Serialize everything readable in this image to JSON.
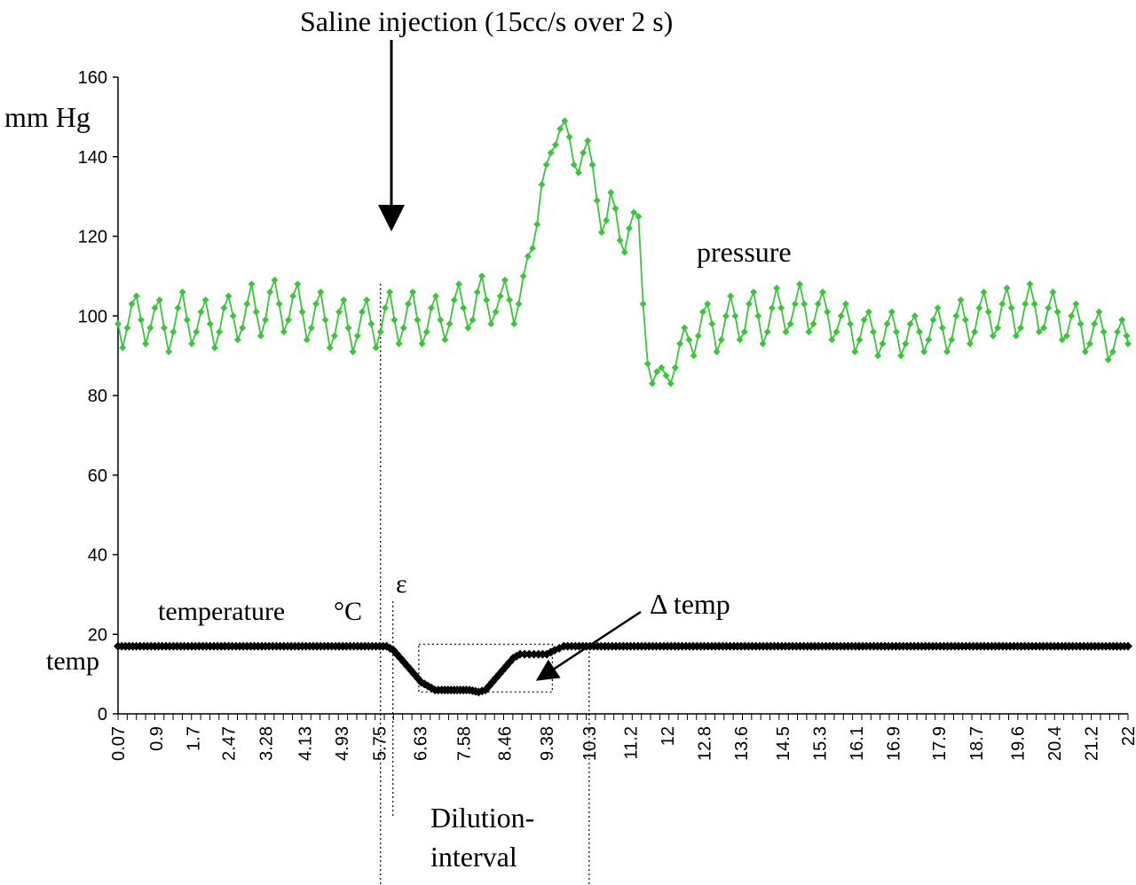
{
  "chart_data": {
    "type": "line",
    "y_axis": {
      "label": "mm Hg",
      "ylim": [
        0,
        160
      ],
      "ticks": [
        0,
        20,
        40,
        60,
        80,
        100,
        120,
        140,
        160
      ]
    },
    "x_axis": {
      "xlim": [
        0.07,
        22
      ],
      "tick_labels": [
        "0.07",
        "0.9",
        "1.7",
        "2.47",
        "3.28",
        "4.13",
        "4.93",
        "5.75",
        "6.63",
        "7.58",
        "8.46",
        "9.38",
        "10.3",
        "11.2",
        "12",
        "12.8",
        "13.6",
        "14.5",
        "15.3",
        "16.1",
        "16.9",
        "17.9",
        "18.7",
        "19.6",
        "20.4",
        "21.2",
        "22"
      ],
      "tick_positions": [
        0.07,
        0.9,
        1.7,
        2.47,
        3.28,
        4.13,
        4.93,
        5.75,
        6.63,
        7.58,
        8.46,
        9.38,
        10.3,
        11.2,
        12,
        12.8,
        13.6,
        14.5,
        15.3,
        16.1,
        16.9,
        17.9,
        18.7,
        19.6,
        20.4,
        21.2,
        22
      ]
    },
    "series": [
      {
        "name": "pressure",
        "color": "#3cc43c",
        "marker": "diamond",
        "points": [
          [
            0.07,
            98
          ],
          [
            0.17,
            92
          ],
          [
            0.27,
            97
          ],
          [
            0.37,
            103
          ],
          [
            0.47,
            105
          ],
          [
            0.57,
            99
          ],
          [
            0.67,
            93
          ],
          [
            0.77,
            97
          ],
          [
            0.87,
            102
          ],
          [
            0.97,
            104
          ],
          [
            1.07,
            97
          ],
          [
            1.17,
            91
          ],
          [
            1.27,
            96
          ],
          [
            1.37,
            102
          ],
          [
            1.47,
            106
          ],
          [
            1.57,
            99
          ],
          [
            1.67,
            93
          ],
          [
            1.77,
            96
          ],
          [
            1.87,
            101
          ],
          [
            1.97,
            104
          ],
          [
            2.07,
            98
          ],
          [
            2.17,
            92
          ],
          [
            2.27,
            96
          ],
          [
            2.37,
            102
          ],
          [
            2.47,
            105
          ],
          [
            2.57,
            100
          ],
          [
            2.67,
            94
          ],
          [
            2.77,
            97
          ],
          [
            2.87,
            103
          ],
          [
            2.97,
            108
          ],
          [
            3.07,
            101
          ],
          [
            3.17,
            95
          ],
          [
            3.27,
            99
          ],
          [
            3.37,
            106
          ],
          [
            3.47,
            109
          ],
          [
            3.57,
            103
          ],
          [
            3.67,
            96
          ],
          [
            3.77,
            99
          ],
          [
            3.87,
            105
          ],
          [
            3.97,
            108
          ],
          [
            4.07,
            101
          ],
          [
            4.17,
            94
          ],
          [
            4.27,
            97
          ],
          [
            4.37,
            103
          ],
          [
            4.47,
            106
          ],
          [
            4.57,
            99
          ],
          [
            4.67,
            92
          ],
          [
            4.77,
            95
          ],
          [
            4.87,
            101
          ],
          [
            4.97,
            104
          ],
          [
            5.07,
            97
          ],
          [
            5.17,
            91
          ],
          [
            5.27,
            95
          ],
          [
            5.37,
            101
          ],
          [
            5.47,
            104
          ],
          [
            5.57,
            98
          ],
          [
            5.67,
            92
          ],
          [
            5.77,
            96
          ],
          [
            5.87,
            102
          ],
          [
            5.97,
            106
          ],
          [
            6.07,
            99
          ],
          [
            6.17,
            93
          ],
          [
            6.27,
            97
          ],
          [
            6.37,
            103
          ],
          [
            6.47,
            106
          ],
          [
            6.57,
            99
          ],
          [
            6.67,
            93
          ],
          [
            6.77,
            96
          ],
          [
            6.87,
            102
          ],
          [
            6.97,
            105
          ],
          [
            7.07,
            99
          ],
          [
            7.17,
            94
          ],
          [
            7.27,
            98
          ],
          [
            7.37,
            104
          ],
          [
            7.47,
            108
          ],
          [
            7.57,
            102
          ],
          [
            7.67,
            97
          ],
          [
            7.77,
            99
          ],
          [
            7.87,
            106
          ],
          [
            7.97,
            110
          ],
          [
            8.07,
            104
          ],
          [
            8.17,
            98
          ],
          [
            8.27,
            101
          ],
          [
            8.37,
            105
          ],
          [
            8.47,
            109
          ],
          [
            8.57,
            104
          ],
          [
            8.67,
            98
          ],
          [
            8.77,
            103
          ],
          [
            8.87,
            110
          ],
          [
            8.97,
            115
          ],
          [
            9.07,
            117
          ],
          [
            9.17,
            123
          ],
          [
            9.27,
            133
          ],
          [
            9.37,
            138
          ],
          [
            9.47,
            141
          ],
          [
            9.57,
            143
          ],
          [
            9.67,
            147
          ],
          [
            9.77,
            149
          ],
          [
            9.87,
            145
          ],
          [
            9.97,
            138
          ],
          [
            10.07,
            136
          ],
          [
            10.17,
            141
          ],
          [
            10.27,
            144
          ],
          [
            10.37,
            138
          ],
          [
            10.47,
            129
          ],
          [
            10.57,
            121
          ],
          [
            10.67,
            124
          ],
          [
            10.77,
            131
          ],
          [
            10.87,
            127
          ],
          [
            10.97,
            119
          ],
          [
            11.07,
            116
          ],
          [
            11.17,
            122
          ],
          [
            11.27,
            126
          ],
          [
            11.37,
            125
          ],
          [
            11.47,
            103
          ],
          [
            11.57,
            88
          ],
          [
            11.67,
            83
          ],
          [
            11.77,
            86
          ],
          [
            11.87,
            87
          ],
          [
            11.97,
            85
          ],
          [
            12.07,
            83
          ],
          [
            12.17,
            87
          ],
          [
            12.27,
            93
          ],
          [
            12.37,
            97
          ],
          [
            12.47,
            94
          ],
          [
            12.57,
            90
          ],
          [
            12.67,
            95
          ],
          [
            12.77,
            101
          ],
          [
            12.87,
            103
          ],
          [
            12.97,
            98
          ],
          [
            13.07,
            91
          ],
          [
            13.17,
            94
          ],
          [
            13.27,
            100
          ],
          [
            13.37,
            105
          ],
          [
            13.47,
            100
          ],
          [
            13.57,
            94
          ],
          [
            13.67,
            96
          ],
          [
            13.77,
            103
          ],
          [
            13.87,
            106
          ],
          [
            13.97,
            100
          ],
          [
            14.07,
            93
          ],
          [
            14.17,
            96
          ],
          [
            14.27,
            102
          ],
          [
            14.37,
            107
          ],
          [
            14.47,
            102
          ],
          [
            14.57,
            96
          ],
          [
            14.67,
            98
          ],
          [
            14.77,
            103
          ],
          [
            14.87,
            108
          ],
          [
            14.97,
            103
          ],
          [
            15.07,
            96
          ],
          [
            15.17,
            98
          ],
          [
            15.27,
            103
          ],
          [
            15.37,
            106
          ],
          [
            15.47,
            101
          ],
          [
            15.57,
            94
          ],
          [
            15.67,
            96
          ],
          [
            15.77,
            100
          ],
          [
            15.87,
            103
          ],
          [
            15.97,
            98
          ],
          [
            16.07,
            91
          ],
          [
            16.17,
            94
          ],
          [
            16.27,
            99
          ],
          [
            16.37,
            101
          ],
          [
            16.47,
            96
          ],
          [
            16.57,
            90
          ],
          [
            16.67,
            93
          ],
          [
            16.77,
            98
          ],
          [
            16.87,
            101
          ],
          [
            16.97,
            96
          ],
          [
            17.07,
            90
          ],
          [
            17.17,
            93
          ],
          [
            17.27,
            98
          ],
          [
            17.37,
            100
          ],
          [
            17.47,
            96
          ],
          [
            17.57,
            91
          ],
          [
            17.67,
            94
          ],
          [
            17.77,
            99
          ],
          [
            17.87,
            102
          ],
          [
            17.97,
            97
          ],
          [
            18.07,
            91
          ],
          [
            18.17,
            94
          ],
          [
            18.27,
            100
          ],
          [
            18.37,
            104
          ],
          [
            18.47,
            99
          ],
          [
            18.57,
            93
          ],
          [
            18.67,
            96
          ],
          [
            18.77,
            102
          ],
          [
            18.87,
            106
          ],
          [
            18.97,
            101
          ],
          [
            19.07,
            95
          ],
          [
            19.17,
            97
          ],
          [
            19.27,
            103
          ],
          [
            19.37,
            107
          ],
          [
            19.47,
            102
          ],
          [
            19.57,
            95
          ],
          [
            19.67,
            97
          ],
          [
            19.77,
            103
          ],
          [
            19.87,
            108
          ],
          [
            19.97,
            103
          ],
          [
            20.07,
            96
          ],
          [
            20.17,
            97
          ],
          [
            20.27,
            102
          ],
          [
            20.37,
            106
          ],
          [
            20.47,
            101
          ],
          [
            20.57,
            94
          ],
          [
            20.67,
            95
          ],
          [
            20.77,
            100
          ],
          [
            20.87,
            103
          ],
          [
            20.97,
            98
          ],
          [
            21.07,
            91
          ],
          [
            21.17,
            93
          ],
          [
            21.27,
            98
          ],
          [
            21.37,
            101
          ],
          [
            21.47,
            96
          ],
          [
            21.57,
            89
          ],
          [
            21.67,
            91
          ],
          [
            21.77,
            96
          ],
          [
            21.87,
            99
          ],
          [
            21.97,
            95
          ],
          [
            22,
            93
          ]
        ]
      },
      {
        "name": "temperature",
        "color": "#000000",
        "marker": "diamond",
        "points": [
          [
            0.07,
            17
          ],
          [
            5.75,
            17
          ],
          [
            5.9,
            17
          ],
          [
            6.05,
            16
          ],
          [
            6.2,
            14
          ],
          [
            6.35,
            12
          ],
          [
            6.5,
            10
          ],
          [
            6.65,
            8
          ],
          [
            6.8,
            7
          ],
          [
            6.95,
            6
          ],
          [
            7.1,
            6
          ],
          [
            7.3,
            6
          ],
          [
            7.5,
            6
          ],
          [
            7.7,
            6
          ],
          [
            7.9,
            5.5
          ],
          [
            8.05,
            6
          ],
          [
            8.2,
            8
          ],
          [
            8.35,
            10
          ],
          [
            8.5,
            12
          ],
          [
            8.65,
            14
          ],
          [
            8.8,
            15
          ],
          [
            9.0,
            15
          ],
          [
            9.2,
            15
          ],
          [
            9.38,
            15
          ],
          [
            9.55,
            16
          ],
          [
            9.75,
            17
          ],
          [
            10.0,
            17
          ],
          [
            22,
            17
          ]
        ]
      }
    ],
    "annotations": {
      "injection": "Saline injection (15cc/s over 2 s)",
      "pressure": "pressure",
      "temperature": "temperature",
      "degC": "°C",
      "temp": "temp",
      "epsilon": "ε",
      "delta_temp": "Δ temp",
      "dilution_line1": "Dilution-",
      "dilution_line2": "interval"
    },
    "grid": false,
    "legend": "none"
  }
}
